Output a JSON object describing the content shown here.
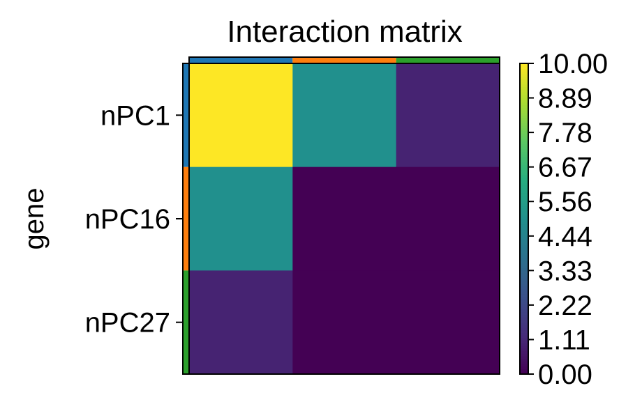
{
  "chart_data": {
    "type": "heatmap",
    "title": "Interaction matrix",
    "xlabel": "",
    "ylabel": "gene",
    "rows": [
      "nPC1",
      "nPC16",
      "nPC27"
    ],
    "columns": [
      "",
      "",
      ""
    ],
    "group_colors": [
      "#1f77b4",
      "#ff7f0e",
      "#2ca02c"
    ],
    "values": [
      [
        10,
        5,
        1
      ],
      [
        5,
        0,
        0
      ],
      [
        1,
        0,
        0
      ]
    ],
    "colormap": "viridis",
    "vmin": 0,
    "vmax": 10,
    "colorbar_ticks": [
      "0.00",
      "1.11",
      "2.22",
      "3.33",
      "4.44",
      "5.56",
      "6.67",
      "7.78",
      "8.89",
      "10.00"
    ]
  }
}
